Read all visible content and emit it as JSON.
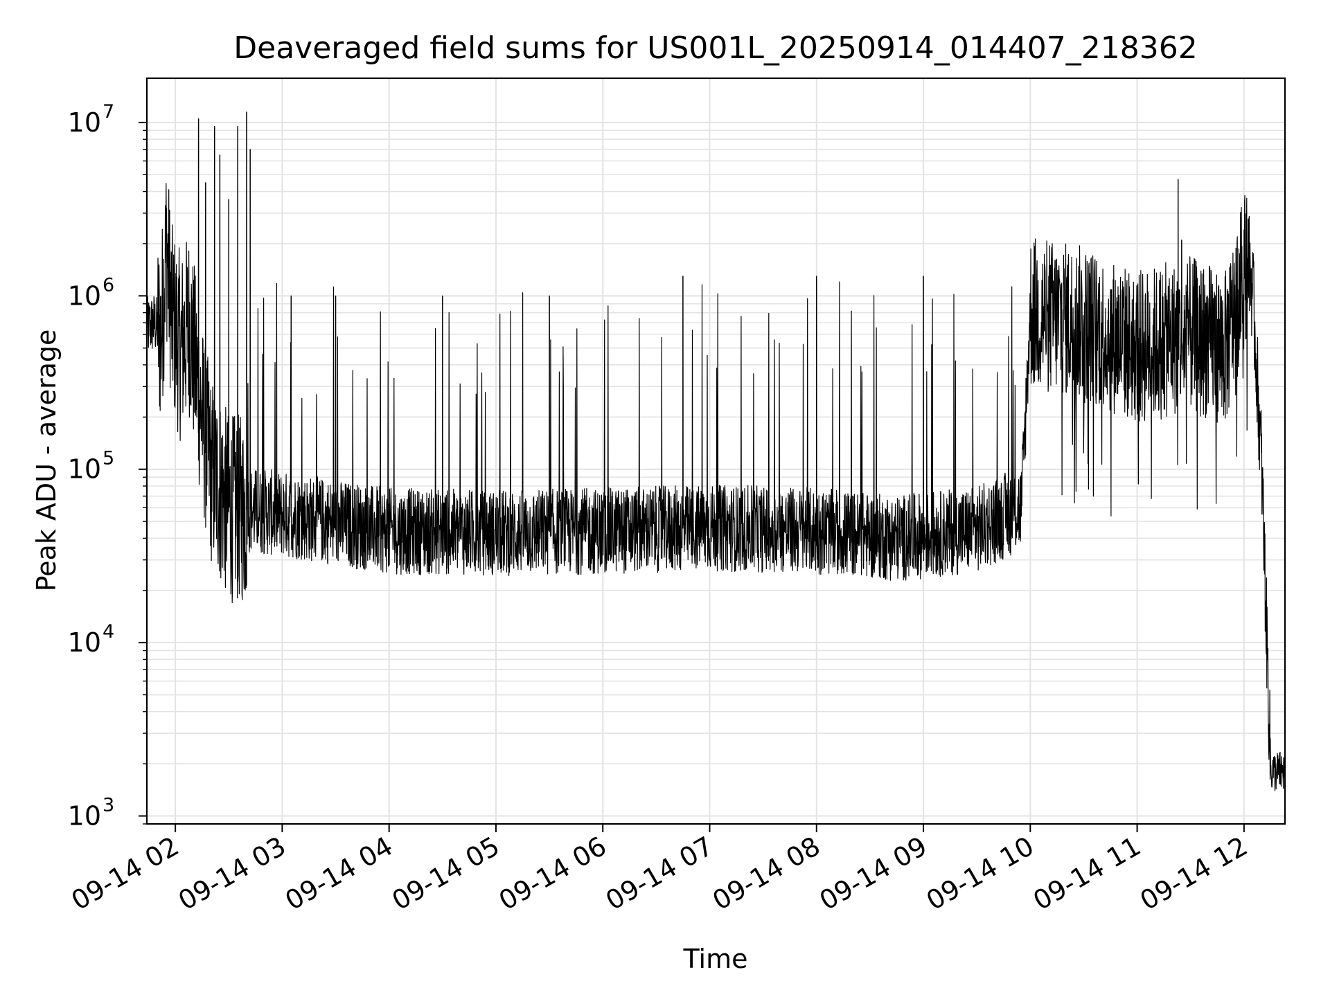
{
  "chart_data": {
    "type": "line",
    "title": "Deaveraged field sums for US001L_20250914_014407_218362",
    "xlabel": "Time",
    "ylabel": "Peak ADU - average",
    "yscale": "log",
    "ylim": [
      900,
      18000000
    ],
    "xlim": [
      "09-14 01:44",
      "09-14 12:23"
    ],
    "grid": true,
    "line_color": "#000000",
    "x_ticks": [
      {
        "value": "09-14 02:00",
        "label": "09-14 02"
      },
      {
        "value": "09-14 03:00",
        "label": "09-14 03"
      },
      {
        "value": "09-14 04:00",
        "label": "09-14 04"
      },
      {
        "value": "09-14 05:00",
        "label": "09-14 05"
      },
      {
        "value": "09-14 06:00",
        "label": "09-14 06"
      },
      {
        "value": "09-14 07:00",
        "label": "09-14 07"
      },
      {
        "value": "09-14 08:00",
        "label": "09-14 08"
      },
      {
        "value": "09-14 09:00",
        "label": "09-14 09"
      },
      {
        "value": "09-14 10:00",
        "label": "09-14 10"
      },
      {
        "value": "09-14 11:00",
        "label": "09-14 11"
      },
      {
        "value": "09-14 12:00",
        "label": "09-14 12"
      }
    ],
    "y_ticks": [
      {
        "value": 1000,
        "base": "10",
        "exp": "3"
      },
      {
        "value": 10000,
        "base": "10",
        "exp": "4"
      },
      {
        "value": 100000,
        "base": "10",
        "exp": "5"
      },
      {
        "value": 1000000,
        "base": "10",
        "exp": "6"
      },
      {
        "value": 10000000,
        "base": "10",
        "exp": "7"
      }
    ],
    "series": [
      {
        "points": [
          {
            "x": "09-14 01:44",
            "y": 650000
          },
          {
            "x": "09-14 01:48",
            "y": 700000
          },
          {
            "x": "09-14 01:52",
            "y": 600000
          },
          {
            "x": "09-14 01:55",
            "y": 2000000
          },
          {
            "x": "09-14 01:58",
            "y": 750000
          },
          {
            "x": "09-14 02:03",
            "y": 500000
          },
          {
            "x": "09-14 02:08",
            "y": 700000
          },
          {
            "x": "09-14 02:15",
            "y": 200000
          },
          {
            "x": "09-14 02:20",
            "y": 100000
          },
          {
            "x": "09-14 02:30",
            "y": 60000
          },
          {
            "x": "09-14 03:00",
            "y": 55000
          },
          {
            "x": "09-14 04:00",
            "y": 44000
          },
          {
            "x": "09-14 05:00",
            "y": 43000
          },
          {
            "x": "09-14 06:00",
            "y": 44000
          },
          {
            "x": "09-14 07:00",
            "y": 46000
          },
          {
            "x": "09-14 08:00",
            "y": 44000
          },
          {
            "x": "09-14 08:45",
            "y": 40000
          },
          {
            "x": "09-14 09:30",
            "y": 45000
          },
          {
            "x": "09-14 09:55",
            "y": 60000
          },
          {
            "x": "09-14 10:00",
            "y": 800000
          },
          {
            "x": "09-14 10:30",
            "y": 700000
          },
          {
            "x": "09-14 11:00",
            "y": 500000
          },
          {
            "x": "09-14 11:30",
            "y": 600000
          },
          {
            "x": "09-14 11:50",
            "y": 500000
          },
          {
            "x": "09-14 12:00",
            "y": 1400000
          },
          {
            "x": "09-14 12:02",
            "y": 1800000
          },
          {
            "x": "09-14 12:05",
            "y": 1000000
          },
          {
            "x": "09-14 12:10",
            "y": 100000
          },
          {
            "x": "09-14 12:15",
            "y": 1800
          },
          {
            "x": "09-14 12:23",
            "y": 1800
          }
        ],
        "spikes": [
          {
            "x": "09-14 02:13",
            "y": 10500000
          },
          {
            "x": "09-14 02:17",
            "y": 4500000
          },
          {
            "x": "09-14 02:22",
            "y": 9500000
          },
          {
            "x": "09-14 02:25",
            "y": 6500000
          },
          {
            "x": "09-14 02:30",
            "y": 3600000
          },
          {
            "x": "09-14 02:35",
            "y": 9500000
          },
          {
            "x": "09-14 02:40",
            "y": 11500000
          },
          {
            "x": "09-14 02:42",
            "y": 7000000
          },
          {
            "x": "09-14 03:05",
            "y": 1000000
          },
          {
            "x": "09-14 03:30",
            "y": 1000000
          },
          {
            "x": "09-14 04:30",
            "y": 1000000
          },
          {
            "x": "09-14 05:30",
            "y": 1000000
          },
          {
            "x": "09-14 06:45",
            "y": 1300000
          },
          {
            "x": "09-14 08:00",
            "y": 1300000
          },
          {
            "x": "09-14 09:00",
            "y": 1300000
          },
          {
            "x": "09-14 11:23",
            "y": 4700000
          },
          {
            "x": "09-14 11:25",
            "y": 2100000
          }
        ]
      }
    ]
  }
}
